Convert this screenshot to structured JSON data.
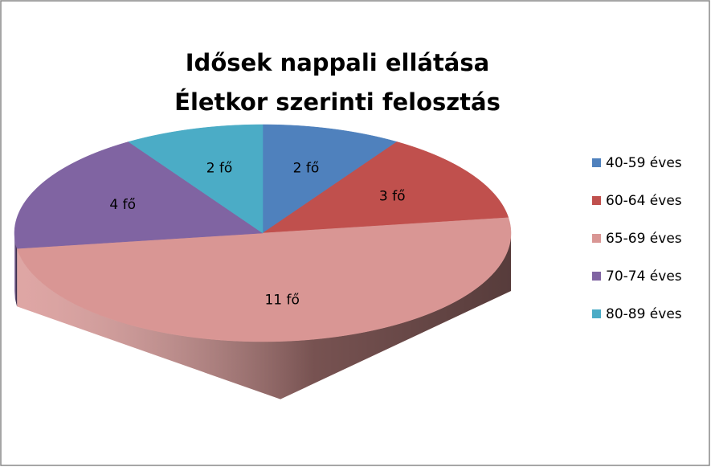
{
  "chart_data": {
    "type": "pie3d",
    "title": [
      "Idősek nappali ellátása",
      "Életkor szerinti felosztás"
    ],
    "categories": [
      "40-59 éves",
      "60-64 éves",
      "65-69 éves",
      "70-74 éves",
      "80-89 éves"
    ],
    "values": [
      2,
      3,
      11,
      4,
      2
    ],
    "value_labels": [
      "2 fő",
      "3 fő",
      "11 fő",
      "4 fő",
      "2 fő"
    ],
    "colors": [
      "#4f81bd",
      "#c0504d",
      "#d99694",
      "#8064a2",
      "#4bacc6"
    ],
    "legend": "right"
  }
}
